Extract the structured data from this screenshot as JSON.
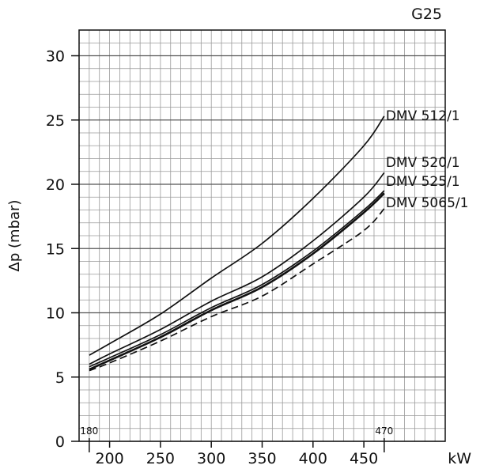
{
  "chart_data": {
    "type": "line",
    "title": "G25",
    "ylabel": "Δp (mbar)",
    "xlabel": "kW",
    "xlim": [
      170,
      530
    ],
    "ylim": [
      0,
      32
    ],
    "xticks": [
      200,
      250,
      300,
      350,
      400,
      450
    ],
    "yticks": [
      0,
      5,
      10,
      15,
      20,
      25,
      30
    ],
    "x_minor_step": 10,
    "y_minor_step": 1,
    "grid": true,
    "range_markers": [
      180,
      470
    ],
    "series": [
      {
        "name": "DMV 512/1",
        "style": "solid",
        "points": [
          [
            180,
            6.7
          ],
          [
            200,
            7.6
          ],
          [
            250,
            9.9
          ],
          [
            300,
            12.7
          ],
          [
            350,
            15.4
          ],
          [
            400,
            18.9
          ],
          [
            450,
            23.0
          ],
          [
            470,
            25.3
          ]
        ]
      },
      {
        "name": "DMV 520/1",
        "style": "solid",
        "points": [
          [
            180,
            6.0
          ],
          [
            200,
            6.8
          ],
          [
            250,
            8.7
          ],
          [
            300,
            10.9
          ],
          [
            350,
            12.8
          ],
          [
            400,
            15.6
          ],
          [
            450,
            19.0
          ],
          [
            470,
            20.9
          ]
        ]
      },
      {
        "name": "DMV 525/1",
        "style": "solid",
        "points": [
          [
            180,
            5.8
          ],
          [
            200,
            6.5
          ],
          [
            250,
            8.3
          ],
          [
            300,
            10.4
          ],
          [
            350,
            12.2
          ],
          [
            400,
            14.8
          ],
          [
            450,
            18.0
          ],
          [
            470,
            19.5
          ]
        ]
      },
      {
        "name": "DMV 5065/1",
        "style": "solid-bold",
        "points": [
          [
            180,
            5.6
          ],
          [
            200,
            6.3
          ],
          [
            250,
            8.1
          ],
          [
            300,
            10.2
          ],
          [
            350,
            12.0
          ],
          [
            400,
            14.6
          ],
          [
            450,
            17.8
          ],
          [
            470,
            19.3
          ]
        ]
      },
      {
        "name": "",
        "style": "dashed",
        "points": [
          [
            180,
            5.5
          ],
          [
            200,
            6.1
          ],
          [
            250,
            7.8
          ],
          [
            300,
            9.7
          ],
          [
            350,
            11.3
          ],
          [
            400,
            13.8
          ],
          [
            450,
            16.4
          ],
          [
            470,
            18.1
          ]
        ]
      }
    ]
  }
}
